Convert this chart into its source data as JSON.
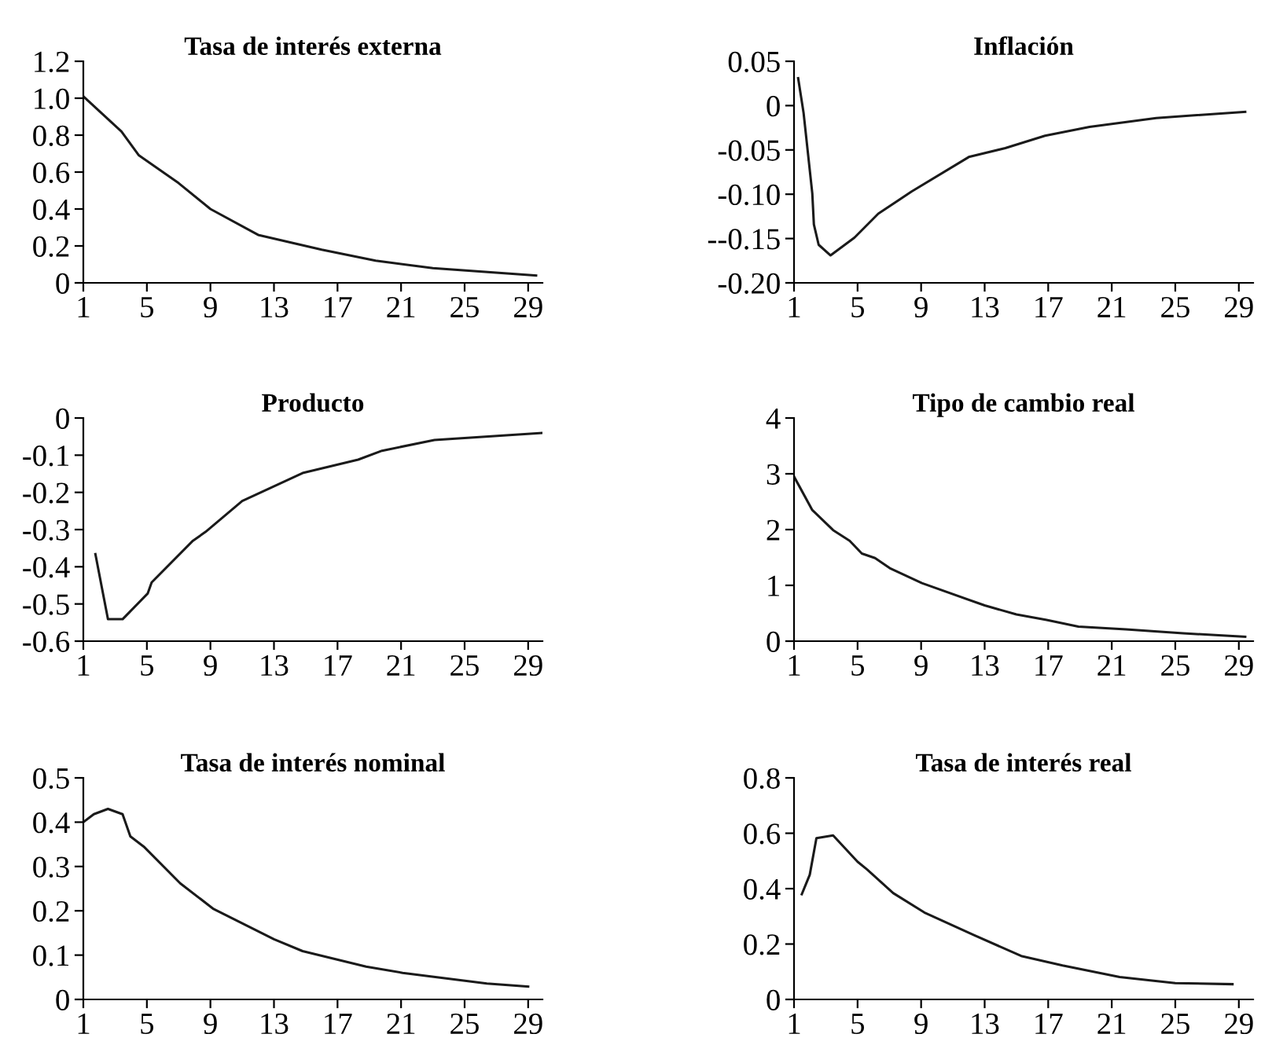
{
  "chart_data": [
    {
      "type": "line",
      "title": "Tasa de interés externa",
      "xlim": [
        1,
        29.9
      ],
      "ylim": [
        0,
        1.2
      ],
      "xticks": [
        1,
        5,
        9,
        13,
        17,
        21,
        25,
        29
      ],
      "yticks": [
        {
          "value": 0,
          "label": "0"
        },
        {
          "value": 0.2,
          "label": "0.2"
        },
        {
          "value": 0.4,
          "label": "0.4"
        },
        {
          "value": 0.6,
          "label": "0.6"
        },
        {
          "value": 0.8,
          "label": "0.8"
        },
        {
          "value": 1.0,
          "label": "1.0"
        },
        {
          "value": 1.2,
          "label": "1.2"
        }
      ],
      "series": [
        {
          "color": "#1a1a1a",
          "x": [
            1,
            3.4,
            4.5,
            7,
            9,
            12,
            16,
            19.4,
            23,
            29.5
          ],
          "values": [
            1.01,
            0.82,
            0.69,
            0.54,
            0.4,
            0.26,
            0.18,
            0.12,
            0.08,
            0.04
          ]
        }
      ]
    },
    {
      "type": "line",
      "title": "Inflación",
      "xlim": [
        1,
        29.9
      ],
      "ylim": [
        -0.2,
        0.05
      ],
      "xticks": [
        1,
        5,
        9,
        13,
        17,
        21,
        25,
        29
      ],
      "yticks": [
        {
          "value": -0.2,
          "label": "-0.20"
        },
        {
          "value": -0.15,
          "label": "--0.15"
        },
        {
          "value": -0.1,
          "label": "-0.10"
        },
        {
          "value": -0.05,
          "label": "-0.05"
        },
        {
          "value": 0,
          "label": "0"
        },
        {
          "value": 0.05,
          "label": "0.05"
        }
      ],
      "series": [
        {
          "color": "#1a1a1a",
          "x": [
            1.26,
            1.6,
            2.15,
            2.25,
            2.55,
            3.3,
            4.8,
            6.3,
            8.4,
            12,
            14.3,
            16.8,
            19.6,
            23.8,
            29.4
          ],
          "values": [
            0.031,
            -0.008,
            -0.099,
            -0.134,
            -0.157,
            -0.169,
            -0.149,
            -0.122,
            -0.097,
            -0.058,
            -0.048,
            -0.034,
            -0.024,
            -0.014,
            -0.007
          ]
        }
      ]
    },
    {
      "type": "line",
      "title": "Producto",
      "xlim": [
        1,
        29.9
      ],
      "ylim": [
        -0.6,
        0
      ],
      "xticks": [
        1,
        5,
        9,
        13,
        17,
        21,
        25,
        29
      ],
      "yticks": [
        {
          "value": -0.6,
          "label": "-0.6"
        },
        {
          "value": -0.5,
          "label": "-0.5"
        },
        {
          "value": -0.4,
          "label": "-0.4"
        },
        {
          "value": -0.3,
          "label": "-0.3"
        },
        {
          "value": -0.2,
          "label": "-0.2"
        },
        {
          "value": -0.1,
          "label": "-0.1"
        },
        {
          "value": 0,
          "label": "0"
        }
      ],
      "series": [
        {
          "color": "#1a1a1a",
          "x": [
            1.76,
            2.55,
            3.47,
            5.05,
            5.3,
            7.9,
            8.7,
            11.0,
            14.8,
            18.3,
            19.8,
            23.1,
            29.9
          ],
          "values": [
            -0.366,
            -0.541,
            -0.541,
            -0.472,
            -0.442,
            -0.33,
            -0.306,
            -0.223,
            -0.148,
            -0.112,
            -0.088,
            -0.059,
            -0.04
          ]
        }
      ]
    },
    {
      "type": "line",
      "title": "Tipo de cambio real",
      "xlim": [
        1,
        29.9
      ],
      "ylim": [
        0,
        4
      ],
      "xticks": [
        1,
        5,
        9,
        13,
        17,
        21,
        25,
        29
      ],
      "yticks": [
        0,
        1,
        2,
        3,
        4
      ],
      "series": [
        {
          "color": "#1a1a1a",
          "x": [
            1,
            2.15,
            3.46,
            4.5,
            5.27,
            6.1,
            7.08,
            9.05,
            13.0,
            15.0,
            16.9,
            18.9,
            21.9,
            25.5,
            29.4
          ],
          "values": [
            2.95,
            2.35,
            1.99,
            1.8,
            1.57,
            1.49,
            1.3,
            1.04,
            0.64,
            0.48,
            0.38,
            0.26,
            0.21,
            0.14,
            0.08
          ]
        }
      ]
    },
    {
      "type": "line",
      "title": "Tasa de interés nominal",
      "xlim": [
        1,
        29.9
      ],
      "ylim": [
        0,
        0.5
      ],
      "xticks": [
        1,
        5,
        9,
        13,
        17,
        21,
        25,
        29
      ],
      "yticks": [
        {
          "value": 0,
          "label": "0"
        },
        {
          "value": 0.1,
          "label": "0.1"
        },
        {
          "value": 0.2,
          "label": "0.2"
        },
        {
          "value": 0.3,
          "label": "0.3"
        },
        {
          "value": 0.4,
          "label": "0.4"
        },
        {
          "value": 0.5,
          "label": "0.5"
        }
      ],
      "series": [
        {
          "color": "#1a1a1a",
          "x": [
            1,
            1.66,
            2.55,
            3.47,
            3.96,
            4.8,
            7.1,
            9.2,
            13.0,
            14.8,
            18.8,
            21.1,
            26.4,
            29
          ],
          "values": [
            0.4,
            0.418,
            0.43,
            0.418,
            0.368,
            0.345,
            0.262,
            0.204,
            0.136,
            0.109,
            0.074,
            0.06,
            0.036,
            0.029
          ]
        }
      ]
    },
    {
      "type": "line",
      "title": "Tasa de interés real",
      "xlim": [
        1,
        29.9
      ],
      "ylim": [
        0,
        0.8
      ],
      "xticks": [
        1,
        5,
        9,
        13,
        17,
        21,
        25,
        29
      ],
      "yticks": [
        {
          "value": 0,
          "label": "0"
        },
        {
          "value": 0.2,
          "label": "0.2"
        },
        {
          "value": 0.4,
          "label": "0.4"
        },
        {
          "value": 0.6,
          "label": "0.6"
        },
        {
          "value": 0.8,
          "label": "0.8"
        }
      ],
      "series": [
        {
          "color": "#1a1a1a",
          "x": [
            1.49,
            1.99,
            2.41,
            3.46,
            5.0,
            5.6,
            7.24,
            9.2,
            12.3,
            15.3,
            17.9,
            21.5,
            25.0,
            28.6
          ],
          "values": [
            0.38,
            0.45,
            0.582,
            0.592,
            0.497,
            0.469,
            0.384,
            0.314,
            0.233,
            0.157,
            0.123,
            0.081,
            0.059,
            0.055
          ]
        }
      ]
    }
  ]
}
